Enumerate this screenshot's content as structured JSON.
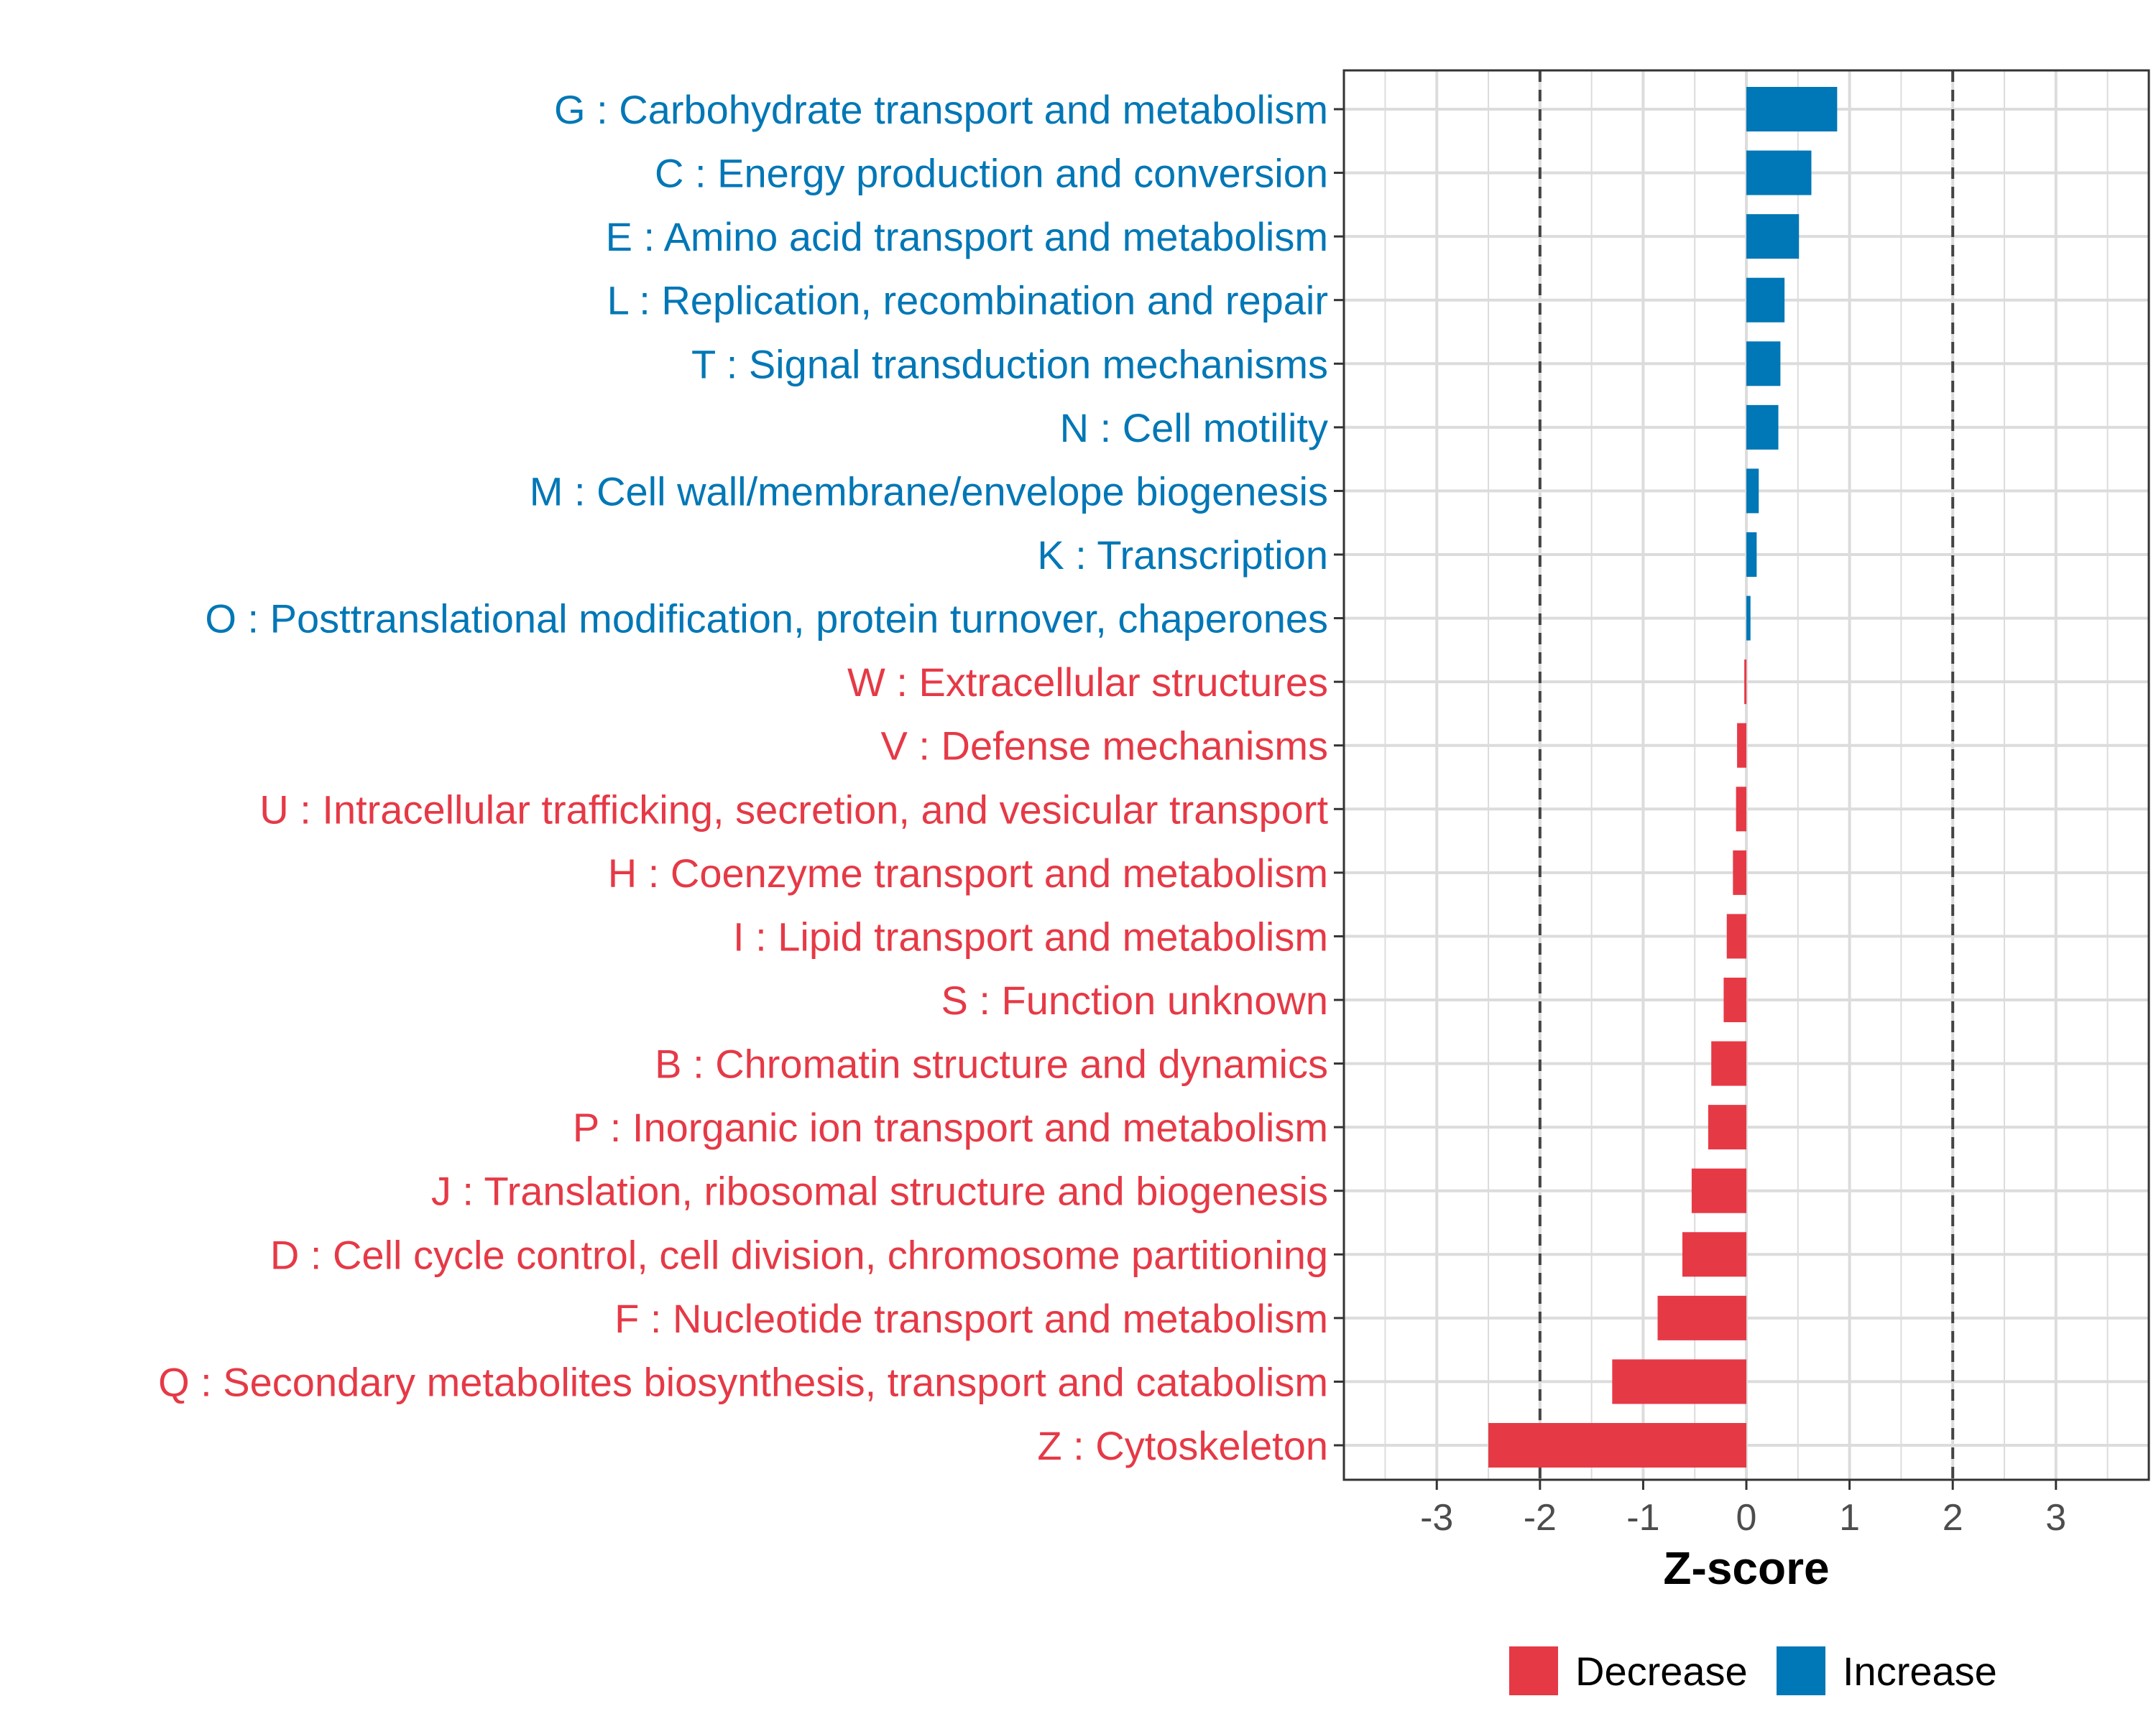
{
  "chart_data": {
    "type": "bar",
    "orientation": "horizontal",
    "title": "",
    "xlabel": "Z-score",
    "ylabel": "",
    "xlim": [
      -3.9,
      3.9
    ],
    "xticks": [
      -3,
      -2,
      -1,
      0,
      1,
      2,
      3
    ],
    "xtick_labels": [
      "-3",
      "-2",
      "-1",
      "0",
      "1",
      "2",
      "3"
    ],
    "reference_lines": [
      -2,
      2
    ],
    "grid": true,
    "colors": {
      "Decrease": "#e63946",
      "Increase": "#0077b6"
    },
    "categories": [
      "G : Carbohydrate transport and metabolism",
      "C : Energy production and conversion",
      "E : Amino acid transport and metabolism",
      "L : Replication, recombination and repair",
      "T : Signal transduction mechanisms",
      "N : Cell motility",
      "M : Cell wall/membrane/envelope biogenesis",
      "K : Transcription",
      "O : Posttranslational modification, protein turnover, chaperones",
      "W : Extracellular structures",
      "V : Defense mechanisms",
      "U : Intracellular trafficking, secretion, and vesicular transport",
      "H : Coenzyme transport and metabolism",
      "I : Lipid transport and metabolism",
      "S : Function unknown",
      "B : Chromatin structure and dynamics",
      "P : Inorganic ion transport and metabolism",
      "J : Translation, ribosomal structure and biogenesis",
      "D : Cell cycle control, cell division, chromosome partitioning",
      "F : Nucleotide transport and metabolism",
      "Q : Secondary metabolites biosynthesis, transport and catabolism",
      "Z : Cytoskeleton"
    ],
    "values": [
      0.88,
      0.63,
      0.51,
      0.37,
      0.33,
      0.31,
      0.12,
      0.1,
      0.04,
      -0.02,
      -0.09,
      -0.1,
      -0.13,
      -0.19,
      -0.22,
      -0.34,
      -0.37,
      -0.53,
      -0.62,
      -0.86,
      -1.3,
      -2.5
    ],
    "groups": [
      "Increase",
      "Increase",
      "Increase",
      "Increase",
      "Increase",
      "Increase",
      "Increase",
      "Increase",
      "Increase",
      "Decrease",
      "Decrease",
      "Decrease",
      "Decrease",
      "Decrease",
      "Decrease",
      "Decrease",
      "Decrease",
      "Decrease",
      "Decrease",
      "Decrease",
      "Decrease",
      "Decrease"
    ],
    "legend": [
      "Decrease",
      "Increase"
    ],
    "legend_position": "bottom"
  }
}
